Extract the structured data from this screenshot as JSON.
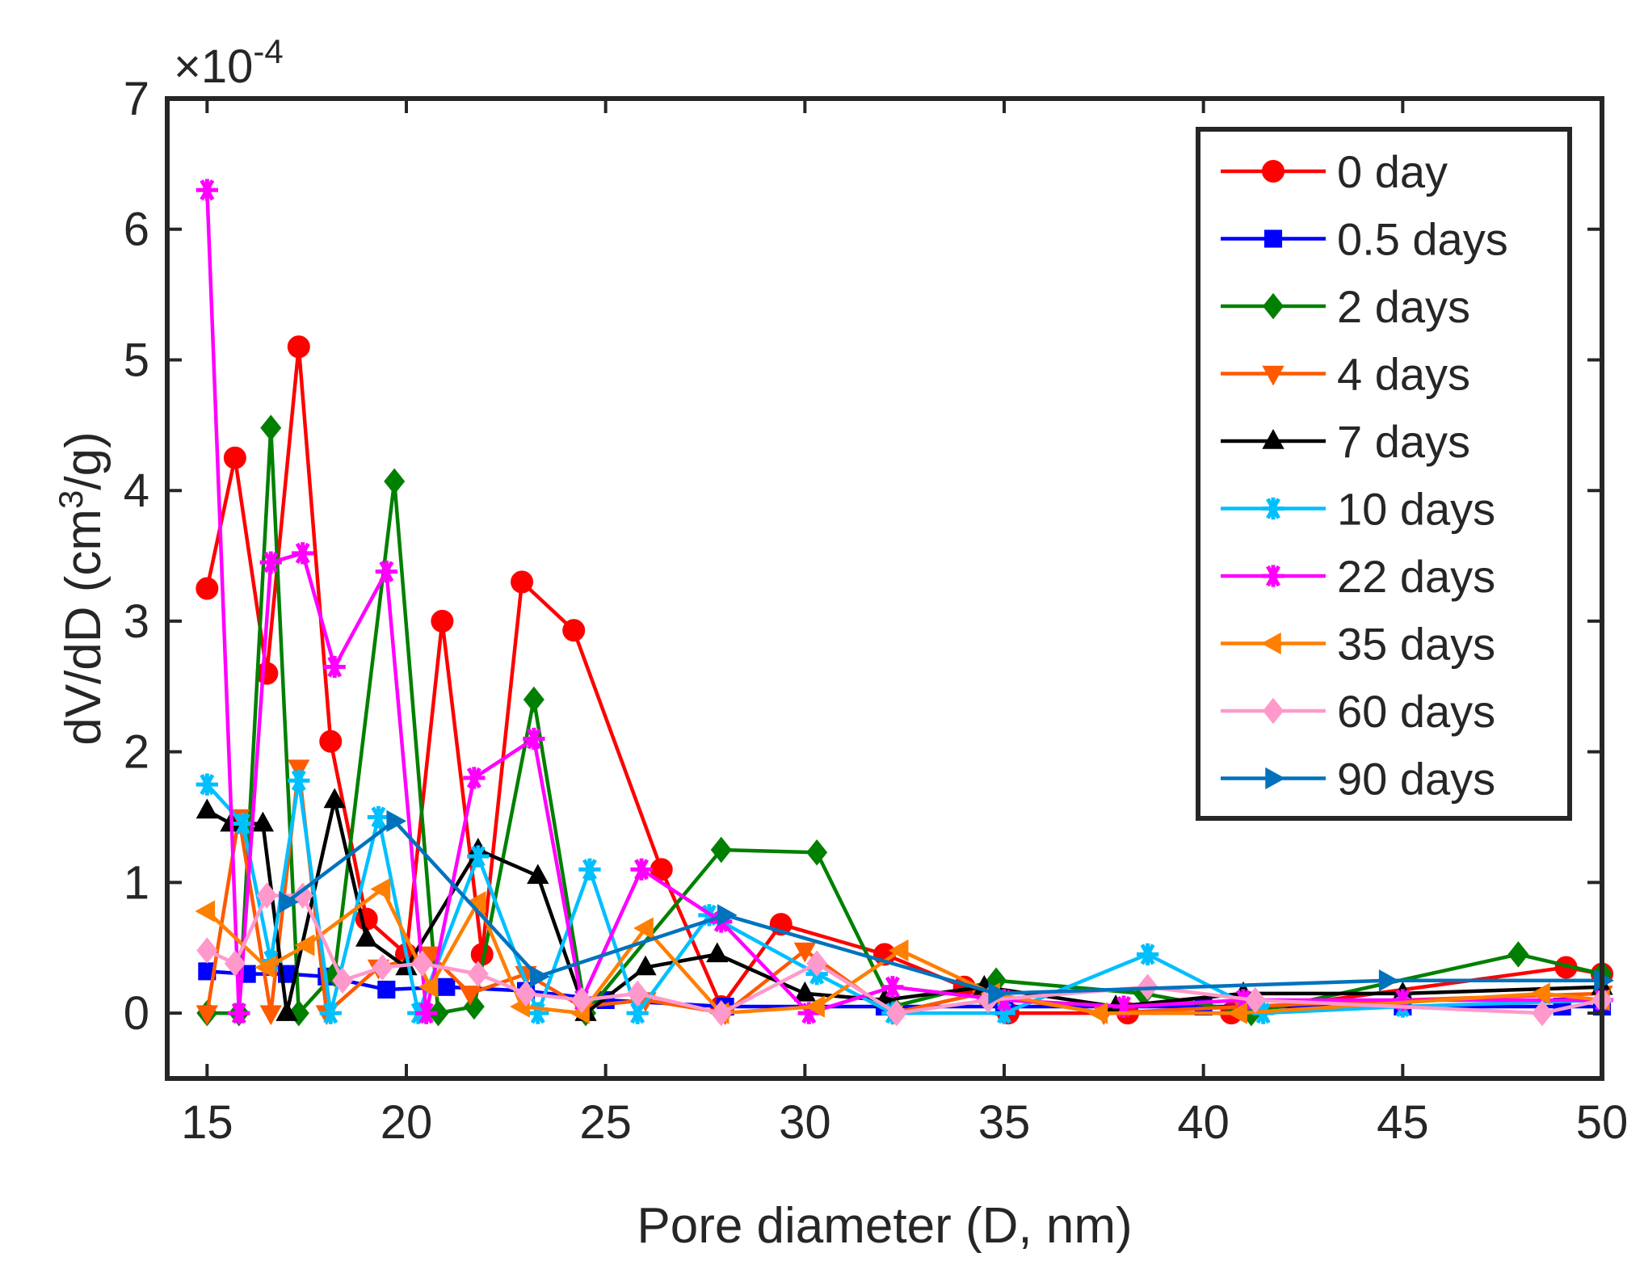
{
  "chart_data": {
    "type": "line",
    "title": "",
    "xlabel": "Pore diameter (D, nm)",
    "ylabel": "dV/dD (cm³/g)",
    "ylabel_parts": {
      "main": "dV/dD (cm",
      "sup": "3",
      "tail": "/g)"
    },
    "exponent_label": {
      "times": "×",
      "base": "10",
      "power": "-4"
    },
    "xlim": [
      14,
      50
    ],
    "ylim": [
      -0.5,
      7
    ],
    "xticks": [
      "15",
      "20",
      "25",
      "30",
      "35",
      "40",
      "45",
      "50"
    ],
    "xtick_values": [
      15,
      20,
      25,
      30,
      35,
      40,
      45,
      50
    ],
    "yticks": [
      "0",
      "1",
      "2",
      "3",
      "4",
      "5",
      "6",
      "7"
    ],
    "ytick_values": [
      0,
      1,
      2,
      3,
      4,
      5,
      6,
      7
    ],
    "legend_position": "top-right",
    "series": [
      {
        "name": "0 day",
        "color": "#ff0000",
        "marker": "circle",
        "x": [
          15.0,
          15.7,
          16.5,
          17.3,
          18.1,
          19.0,
          20.0,
          20.9,
          21.9,
          22.9,
          24.2,
          26.4,
          27.9,
          29.4,
          32.0,
          34.0,
          35.1,
          38.1,
          40.7,
          49.1,
          50.0
        ],
        "y": [
          3.25,
          4.25,
          2.6,
          5.1,
          2.08,
          0.72,
          0.45,
          3.0,
          0.45,
          3.3,
          2.93,
          1.1,
          0.05,
          0.68,
          0.45,
          0.2,
          0.0,
          0.0,
          0.0,
          0.35,
          0.3
        ]
      },
      {
        "name": "0.5 days",
        "color": "#0000ff",
        "marker": "square",
        "x": [
          15.0,
          16.0,
          17.0,
          18.0,
          19.5,
          21.0,
          23.0,
          25.0,
          28.0,
          32.0,
          35.0,
          40.0,
          45.0,
          49.0,
          50.0
        ],
        "y": [
          0.32,
          0.3,
          0.3,
          0.28,
          0.18,
          0.2,
          0.17,
          0.1,
          0.05,
          0.05,
          0.05,
          0.05,
          0.05,
          0.05,
          0.05
        ]
      },
      {
        "name": "2 days",
        "color": "#008000",
        "marker": "diamond",
        "x": [
          15.0,
          15.8,
          16.6,
          17.3,
          18.2,
          19.7,
          20.8,
          21.7,
          23.2,
          24.5,
          27.9,
          30.3,
          32.2,
          34.8,
          38.5,
          41.2,
          47.9,
          50.0
        ],
        "y": [
          0.0,
          0.0,
          4.48,
          0.0,
          0.3,
          4.07,
          0.0,
          0.05,
          2.4,
          0.0,
          1.25,
          1.23,
          0.05,
          0.25,
          0.15,
          0.0,
          0.45,
          0.3
        ]
      },
      {
        "name": "4 days",
        "color": "#ff5a00",
        "marker": "triangle-down",
        "x": [
          15.0,
          15.8,
          16.6,
          17.3,
          18.0,
          19.3,
          20.6,
          21.6,
          23.0,
          24.4,
          26.0,
          28.0,
          30.0,
          32.2,
          34.4,
          37.5,
          41.0,
          45.0,
          50.0
        ],
        "y": [
          0.0,
          1.5,
          0.0,
          1.88,
          0.0,
          0.35,
          0.45,
          0.15,
          0.3,
          0.05,
          0.1,
          0.0,
          0.48,
          0.0,
          0.15,
          0.0,
          0.05,
          0.1,
          0.15
        ]
      },
      {
        "name": "7 days",
        "color": "#000000",
        "marker": "triangle-up",
        "x": [
          15.0,
          15.6,
          16.4,
          17.0,
          18.2,
          19.0,
          20.0,
          21.8,
          23.3,
          24.5,
          26.0,
          27.8,
          30.0,
          32.0,
          34.5,
          37.8,
          41.0,
          45.0,
          50.0
        ],
        "y": [
          1.55,
          1.45,
          1.45,
          0.0,
          1.63,
          0.57,
          0.35,
          1.25,
          1.05,
          0.0,
          0.35,
          0.45,
          0.15,
          0.1,
          0.2,
          0.05,
          0.15,
          0.15,
          0.2
        ]
      },
      {
        "name": "10 days",
        "color": "#00bfff",
        "marker": "asterisk",
        "x": [
          15.0,
          15.9,
          16.6,
          17.3,
          18.1,
          19.3,
          20.3,
          21.8,
          23.3,
          24.6,
          25.8,
          27.6,
          30.3,
          32.2,
          35.0,
          38.6,
          41.5,
          45.0,
          50.0
        ],
        "y": [
          1.75,
          1.45,
          0.4,
          1.78,
          0.0,
          1.5,
          0.0,
          1.2,
          0.0,
          1.1,
          0.0,
          0.75,
          0.3,
          0.0,
          0.0,
          0.45,
          0.0,
          0.05,
          0.1
        ]
      },
      {
        "name": "22 days",
        "color": "#ff00ff",
        "marker": "asterisk",
        "x": [
          15.0,
          15.8,
          16.6,
          17.4,
          18.2,
          19.5,
          20.5,
          21.7,
          23.2,
          24.4,
          25.9,
          27.9,
          30.1,
          32.2,
          35.0,
          38.0,
          41.0,
          45.0,
          50.0
        ],
        "y": [
          6.3,
          0.0,
          3.45,
          3.52,
          2.65,
          3.38,
          0.0,
          1.8,
          2.1,
          0.1,
          1.1,
          0.7,
          0.0,
          0.2,
          0.1,
          0.05,
          0.1,
          0.1,
          0.1
        ]
      },
      {
        "name": "35 days",
        "color": "#ff7f00",
        "marker": "triangle-left",
        "x": [
          15.0,
          16.5,
          17.5,
          19.4,
          20.6,
          21.8,
          22.9,
          24.4,
          26.0,
          27.9,
          30.3,
          32.4,
          34.7,
          37.4,
          40.9,
          48.5,
          50.0
        ],
        "y": [
          0.78,
          0.35,
          0.52,
          0.95,
          0.2,
          0.85,
          0.05,
          0.0,
          0.65,
          0.0,
          0.05,
          0.48,
          0.15,
          0.0,
          0.0,
          0.15,
          0.1
        ]
      },
      {
        "name": "60 days",
        "color": "#ff99cc",
        "marker": "diamond",
        "x": [
          15.0,
          15.7,
          16.5,
          17.4,
          18.4,
          19.4,
          20.4,
          21.8,
          23.0,
          24.4,
          25.8,
          27.9,
          30.3,
          32.3,
          34.6,
          38.6,
          41.3,
          48.5,
          50.0
        ],
        "y": [
          0.48,
          0.38,
          0.9,
          0.9,
          0.25,
          0.35,
          0.38,
          0.3,
          0.15,
          0.1,
          0.15,
          0.0,
          0.38,
          0.0,
          0.1,
          0.2,
          0.1,
          0.0,
          0.1
        ]
      },
      {
        "name": "90 days",
        "color": "#0072bd",
        "marker": "triangle-right",
        "x": [
          17.0,
          19.7,
          23.3,
          28.0,
          34.8,
          44.6,
          50.0
        ],
        "y": [
          0.85,
          1.47,
          0.28,
          0.75,
          0.15,
          0.25,
          0.25
        ]
      }
    ]
  }
}
